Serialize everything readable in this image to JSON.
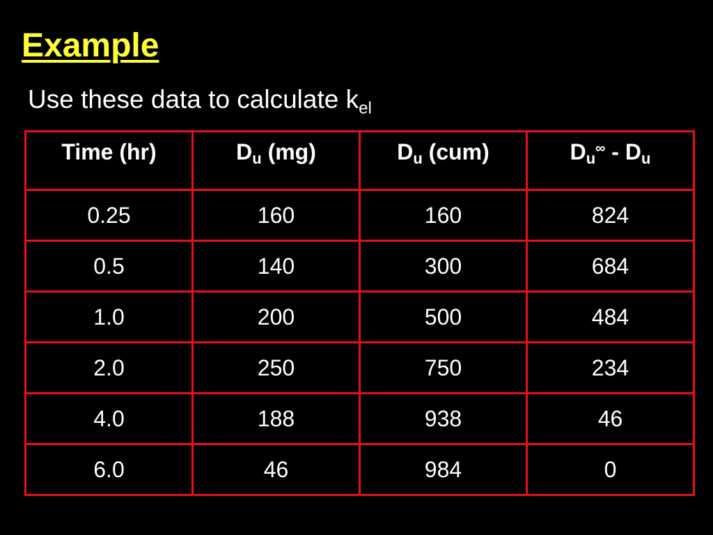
{
  "title": "Example",
  "subtitle": {
    "text": "Use these data to calculate k",
    "sub": "el"
  },
  "table": {
    "header": [
      {
        "text": "Time (hr)"
      },
      {
        "base": "D",
        "sub": "u",
        "after": " (mg)"
      },
      {
        "base": "D",
        "sub": "u",
        "after": " (cum)"
      },
      {
        "base": "D",
        "sub": "u",
        "sup": "∞",
        "after": " - D",
        "sub2": "u"
      }
    ],
    "rows": [
      [
        "0.25",
        "160",
        "160",
        "824"
      ],
      [
        "0.5",
        "140",
        "300",
        "684"
      ],
      [
        "1.0",
        "200",
        "500",
        "484"
      ],
      [
        "2.0",
        "250",
        "750",
        "234"
      ],
      [
        "4.0",
        "188",
        "938",
        "46"
      ],
      [
        "6.0",
        "46",
        "984",
        "0"
      ]
    ]
  }
}
